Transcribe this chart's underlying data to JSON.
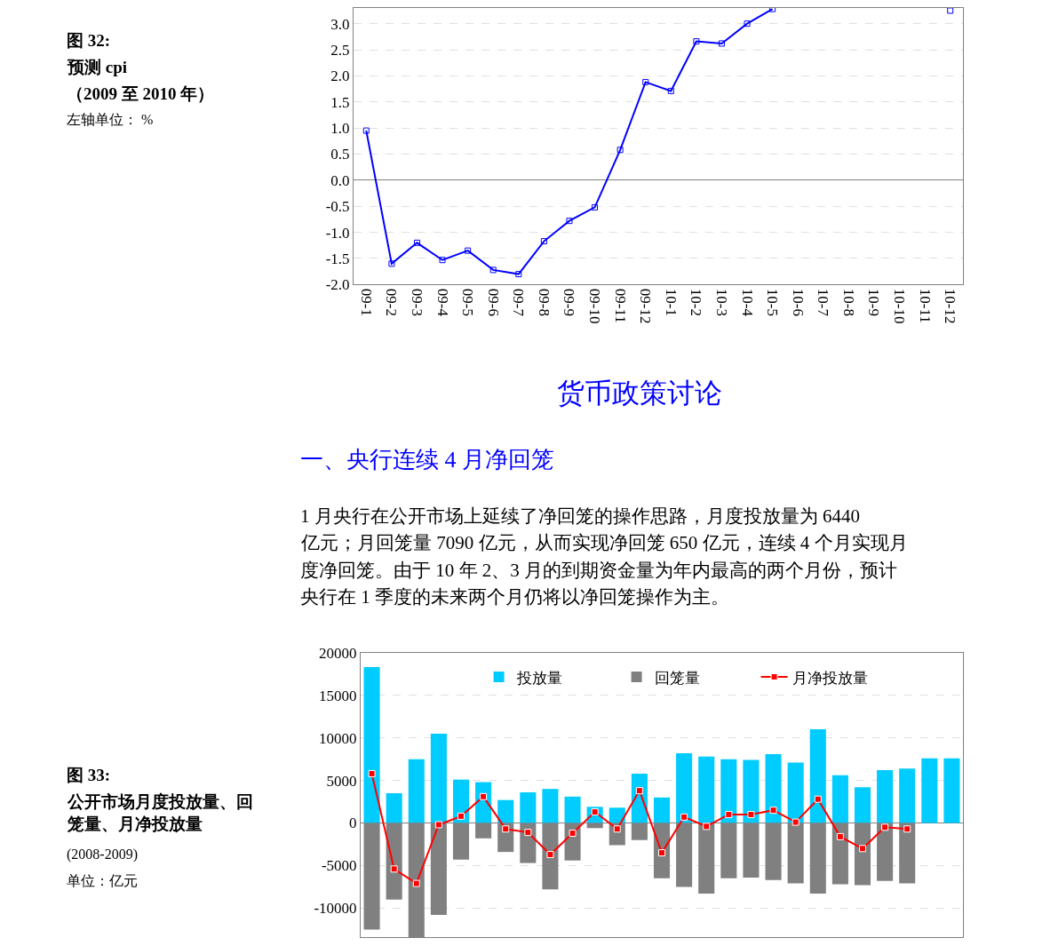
{
  "chart_data": [
    {
      "type": "line",
      "annotations": [
        "图 32:",
        "预测 cpi",
        "（2009 至 2010 年）",
        "左轴单位： %"
      ],
      "categories": [
        "09-1",
        "09-2",
        "09-3",
        "09-4",
        "09-5",
        "09-6",
        "09-7",
        "09-8",
        "09-9",
        "09-10",
        "09-11",
        "09-12",
        "10-1",
        "10-2",
        "10-3",
        "10-4",
        "10-5",
        "10-6",
        "10-7",
        "10-8",
        "10-9",
        "10-10",
        "10-11",
        "10-12"
      ],
      "series": [
        {
          "color": "#0000ff",
          "values": [
            0.95,
            -1.6,
            -1.2,
            -1.53,
            -1.35,
            -1.72,
            -1.8,
            -1.17,
            -0.78,
            -0.52,
            0.58,
            1.88,
            1.71,
            2.66,
            2.62,
            3.0,
            3.28,
            null,
            null,
            null,
            null,
            null,
            null,
            3.25
          ]
        }
      ],
      "ylim": [
        -2.0,
        3.3
      ],
      "yticks": [
        {
          "value": -2,
          "label": "-2.0"
        },
        {
          "value": -1.5,
          "label": "-1.5"
        },
        {
          "value": -1,
          "label": "-1.0"
        },
        {
          "value": -0.5,
          "label": "-0.5"
        },
        {
          "value": 0,
          "label": "0.0"
        },
        {
          "value": 0.5,
          "label": "0.5"
        },
        {
          "value": 1,
          "label": "1.0"
        },
        {
          "value": 1.5,
          "label": "1.5"
        },
        {
          "value": 2,
          "label": "2.0"
        },
        {
          "value": 2.5,
          "label": "2.5"
        },
        {
          "value": 3,
          "label": "3.0"
        }
      ],
      "grid": "y",
      "marker": "square",
      "line_style": "solid",
      "legend": false
    },
    {
      "type": "other",
      "title": "货币政策讨论",
      "subtitle": "一、央行连续 4 月净回笼",
      "annotations": [
        "1 月央行在公开市场上延续了净回笼的操作思路，月度投放量为 6440",
        "亿元；月回笼量 7090 亿元，从而实现净回笼 650 亿元，连续 4 个月实现月",
        "度净回笼。由于 10 年 2、3 月的到期资金量为年内最高的两个月份，预计",
        "央行在 1 季度的未来两个月仍将以净回笼操作为主。"
      ]
    },
    {
      "type": "bar",
      "stacked": true,
      "annotations": [
        "图 33:",
        "公开市场月度投放量、回笼量、月净投放量",
        "(2008-2009)",
        "单位：亿元"
      ],
      "categories": [
        null,
        null,
        null,
        null,
        null,
        null,
        null,
        null,
        null,
        null,
        null,
        null,
        null,
        null,
        null,
        null,
        null,
        null,
        null,
        null,
        null,
        null,
        null,
        null,
        null,
        null,
        null
      ],
      "series": [
        {
          "name": "投放量",
          "color": "#00ccff",
          "values": [
            18300,
            3500,
            7500,
            10500,
            5100,
            4800,
            2700,
            3600,
            4000,
            3100,
            1900,
            1800,
            5800,
            3000,
            8200,
            7800,
            7500,
            7400,
            8100,
            7100,
            11000,
            5600,
            4200,
            6200,
            6400,
            7600,
            7600
          ]
        },
        {
          "name": "回笼量",
          "color": "#808080",
          "values": [
            -12500,
            -9000,
            -13400,
            -10800,
            -4300,
            -1800,
            -3400,
            -4700,
            -7800,
            -4400,
            -600,
            -2600,
            -2000,
            -6500,
            -7500,
            -8300,
            -6500,
            -6400,
            -6700,
            -7100,
            -8300,
            -7200,
            -7300,
            -6800,
            -7100,
            null,
            null
          ]
        },
        {
          "name": "月净投放量",
          "type": "line",
          "color": "#ff0000",
          "marker": "square",
          "values": [
            5800,
            -5400,
            -7100,
            -200,
            800,
            3100,
            -700,
            -1100,
            -3700,
            -1200,
            1300,
            -700,
            3800,
            -3500,
            700,
            -400,
            1000,
            1000,
            1500,
            100,
            2800,
            -1600,
            -3000,
            -500,
            -700,
            null,
            null
          ]
        }
      ],
      "ylim": [
        -13400,
        20000
      ],
      "yticks": [
        -10000,
        -5000,
        0,
        5000,
        10000,
        15000,
        20000
      ],
      "grid": "y",
      "legend": "top",
      "tick_labels": "y"
    }
  ]
}
